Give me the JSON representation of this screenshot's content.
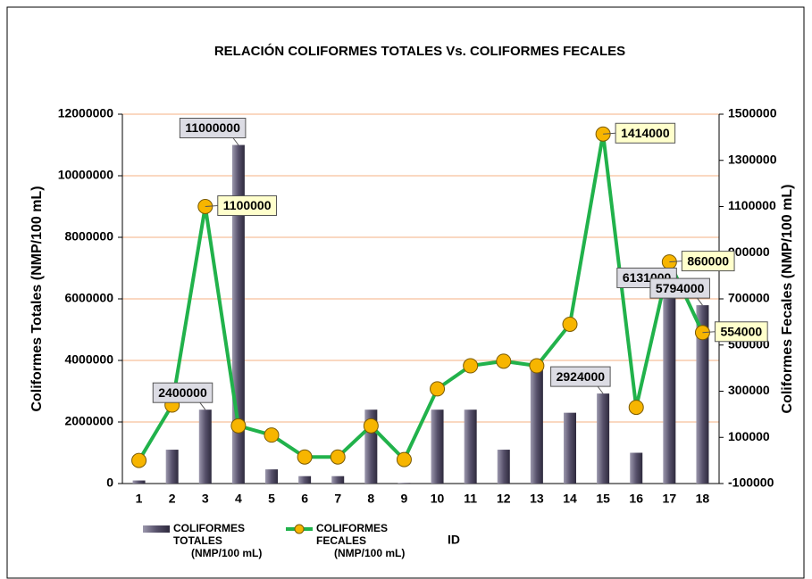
{
  "chart_data": {
    "type": "bar_line",
    "title": "RELACIÓN COLIFORMES TOTALES Vs. COLIFORMES FECALES",
    "x_label": "ID",
    "y_label": "Coliformes  Totales (NMP/100 mL)",
    "y2_label": "Coliformes  Fecales  (NMP/100 mL)",
    "categories": [
      "1",
      "2",
      "3",
      "4",
      "5",
      "6",
      "7",
      "8",
      "9",
      "10",
      "11",
      "12",
      "13",
      "14",
      "15",
      "16",
      "17",
      "18"
    ],
    "series": [
      {
        "name": "COLIFORMES TOTALES (NMP/100 mL)",
        "type": "bar",
        "color": "#57516b",
        "values": [
          100000,
          1100000,
          2400000,
          11000000,
          460000,
          240000,
          240000,
          2400000,
          20000,
          2400000,
          2400000,
          1100000,
          3900000,
          2300000,
          2924000,
          1000000,
          6131000,
          5794000
        ],
        "value_labels": [
          null,
          null,
          "2400000",
          "11000000",
          null,
          null,
          null,
          null,
          null,
          null,
          null,
          null,
          null,
          null,
          "2924000",
          null,
          "6131000",
          "5794000"
        ]
      },
      {
        "name": "COLIFORMES FECALES (NMP/100 mL)",
        "type": "line",
        "axis": "y2",
        "color": "#21b24b",
        "marker_color": "#f7b500",
        "values": [
          0,
          240000,
          1100000,
          150000,
          110000,
          15000,
          15000,
          150000,
          4000,
          310000,
          410000,
          430000,
          410000,
          590000,
          1414000,
          230000,
          860000,
          554000
        ],
        "value_labels": [
          null,
          null,
          "1100000",
          null,
          null,
          null,
          null,
          null,
          null,
          null,
          null,
          null,
          null,
          null,
          "1414000",
          null,
          "860000",
          "554000"
        ]
      }
    ],
    "ylim": [
      0,
      12000000
    ],
    "yticks": [
      0,
      2000000,
      4000000,
      6000000,
      8000000,
      10000000,
      12000000
    ],
    "y2lim": [
      -100000,
      1500000
    ],
    "y2ticks": [
      -100000,
      100000,
      300000,
      500000,
      700000,
      900000,
      1100000,
      1300000,
      1500000
    ],
    "grid": true
  }
}
